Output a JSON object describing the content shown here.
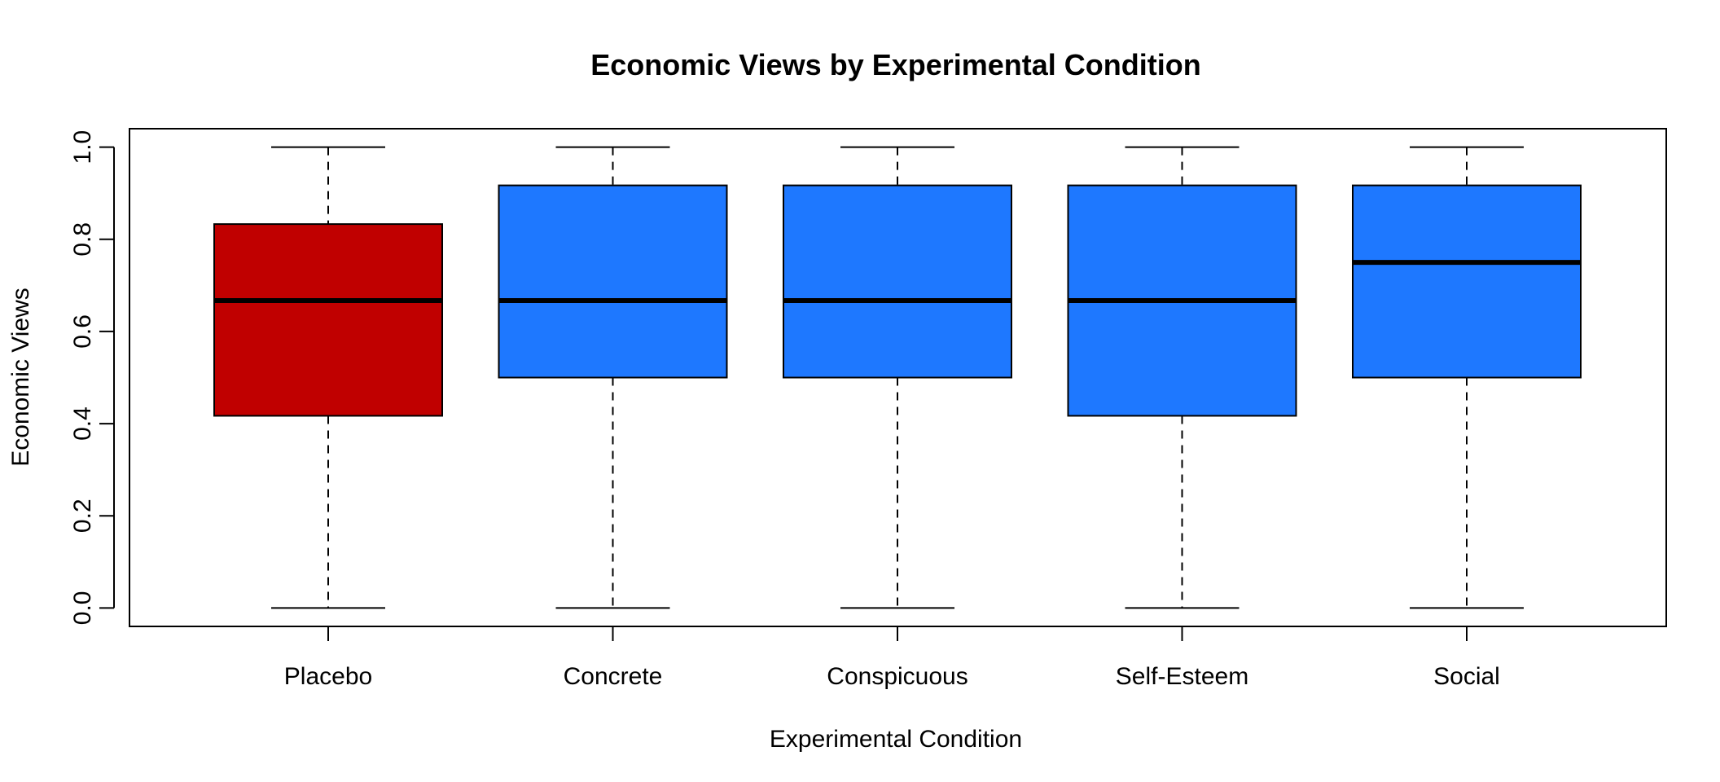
{
  "chart_data": {
    "type": "box",
    "title": "Economic Views by Experimental Condition",
    "xlabel": "Experimental Condition",
    "ylabel": "Economic Views",
    "ylim": [
      -0.04,
      1.04
    ],
    "yticks": [
      0.0,
      0.2,
      0.4,
      0.6,
      0.8,
      1.0
    ],
    "ytick_labels": [
      "0.0",
      "0.2",
      "0.4",
      "0.6",
      "0.8",
      "1.0"
    ],
    "grid": false,
    "legend": "none",
    "categories": [
      "Placebo",
      "Concrete",
      "Conspicuous",
      "Self-Esteem",
      "Social"
    ],
    "colors": [
      "#C00000",
      "#1E78FF",
      "#1E78FF",
      "#1E78FF",
      "#1E78FF"
    ],
    "boxes": [
      {
        "min": 0.0,
        "q1": 0.417,
        "median": 0.667,
        "q3": 0.833,
        "max": 1.0
      },
      {
        "min": 0.0,
        "q1": 0.5,
        "median": 0.667,
        "q3": 0.917,
        "max": 1.0
      },
      {
        "min": 0.0,
        "q1": 0.5,
        "median": 0.667,
        "q3": 0.917,
        "max": 1.0
      },
      {
        "min": 0.0,
        "q1": 0.417,
        "median": 0.667,
        "q3": 0.917,
        "max": 1.0
      },
      {
        "min": 0.0,
        "q1": 0.5,
        "median": 0.75,
        "q3": 0.917,
        "max": 1.0
      }
    ]
  }
}
